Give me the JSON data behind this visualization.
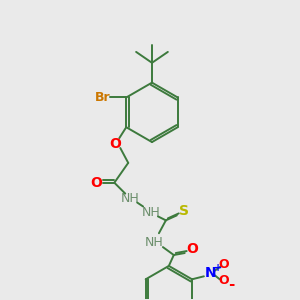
{
  "background_color": "#eaeaea",
  "bond_color": "#3d7a3d",
  "atom_colors": {
    "Br": "#cc7700",
    "O": "#ff0000",
    "N": "#0000ff",
    "S": "#b8b800",
    "NH": "#6b8e6b",
    "C": "#3d7a3d"
  },
  "figsize": [
    3.0,
    3.0
  ],
  "dpi": 100
}
